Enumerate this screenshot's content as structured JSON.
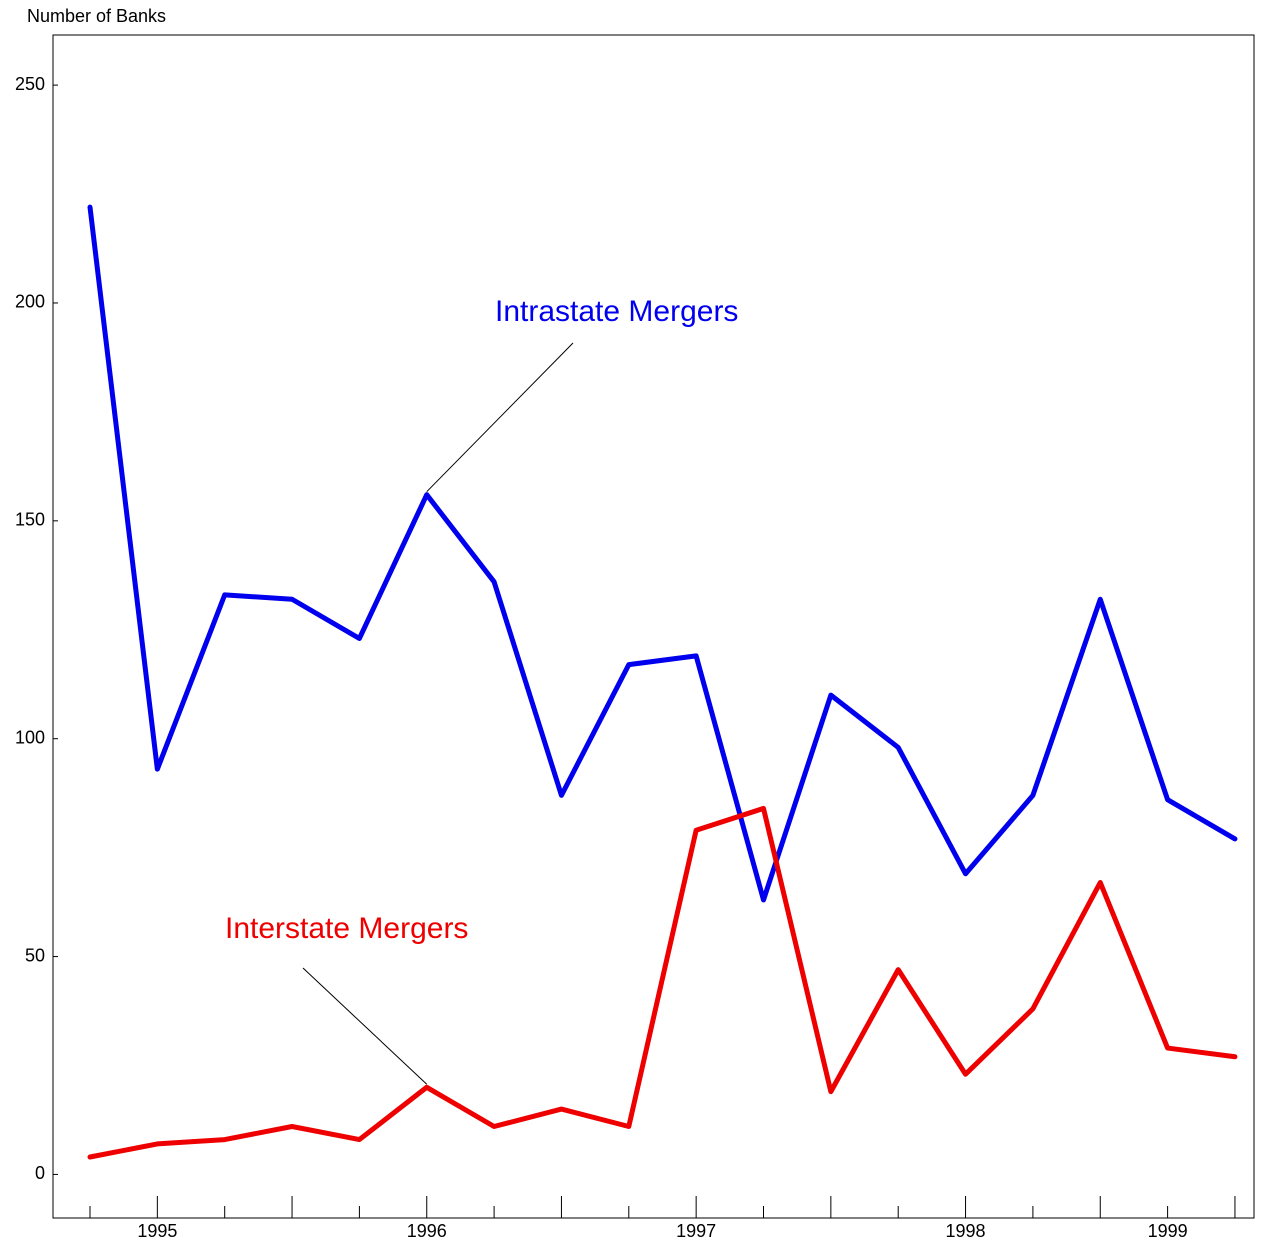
{
  "chart_data": {
    "type": "line",
    "y_axis_label": "Number of Banks",
    "categories": [
      null,
      "1995",
      null,
      null,
      null,
      "1996",
      null,
      null,
      null,
      "1997",
      null,
      null,
      null,
      "1998",
      null,
      null,
      "1999",
      null
    ],
    "series": [
      {
        "name": "Intrastate Mergers",
        "color": "#0000ee",
        "values": [
          222,
          93,
          133,
          132,
          123,
          156,
          136,
          87,
          117,
          119,
          63,
          110,
          98,
          69,
          87,
          132,
          86,
          77
        ]
      },
      {
        "name": "Interstate Mergers",
        "color": "#ee0000",
        "values": [
          4,
          7,
          8,
          11,
          8,
          20,
          11,
          15,
          11,
          79,
          84,
          19,
          47,
          23,
          38,
          67,
          29,
          27
        ]
      }
    ],
    "ylim": [
      -10,
      261.5
    ],
    "yticks": [
      0,
      50,
      100,
      150,
      200,
      250
    ],
    "grid": false
  }
}
